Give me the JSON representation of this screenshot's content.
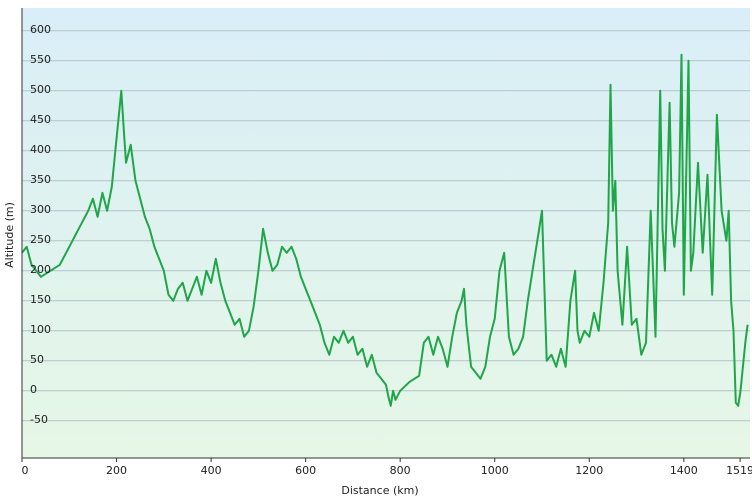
{
  "chart_data": {
    "type": "line",
    "x_label": "Distance  (km)",
    "y_label": "Altitude (m)",
    "x": [
      0,
      10,
      20,
      40,
      60,
      80,
      100,
      120,
      140,
      150,
      160,
      170,
      180,
      190,
      200,
      210,
      215,
      220,
      230,
      240,
      250,
      260,
      270,
      280,
      290,
      300,
      310,
      320,
      330,
      340,
      350,
      360,
      370,
      380,
      390,
      400,
      410,
      420,
      430,
      440,
      450,
      460,
      470,
      480,
      490,
      500,
      510,
      520,
      530,
      540,
      550,
      560,
      570,
      580,
      590,
      600,
      610,
      620,
      630,
      640,
      650,
      660,
      670,
      680,
      690,
      700,
      710,
      720,
      730,
      740,
      750,
      760,
      770,
      775,
      780,
      785,
      790,
      800,
      820,
      840,
      850,
      860,
      870,
      880,
      890,
      900,
      910,
      920,
      930,
      935,
      940,
      950,
      960,
      970,
      980,
      990,
      1000,
      1010,
      1020,
      1030,
      1040,
      1050,
      1060,
      1070,
      1080,
      1090,
      1100,
      1110,
      1120,
      1130,
      1140,
      1150,
      1160,
      1170,
      1175,
      1180,
      1190,
      1200,
      1210,
      1220,
      1230,
      1240,
      1245,
      1250,
      1255,
      1260,
      1270,
      1280,
      1290,
      1300,
      1310,
      1320,
      1330,
      1340,
      1350,
      1355,
      1360,
      1370,
      1375,
      1380,
      1390,
      1395,
      1400,
      1410,
      1415,
      1420,
      1430,
      1440,
      1450,
      1460,
      1470,
      1480,
      1490,
      1495,
      1500,
      1505,
      1510,
      1515,
      1520,
      1530,
      1535
    ],
    "series": [
      {
        "name": "Altitude",
        "color": "#1fa648",
        "values": [
          230,
          240,
          210,
          190,
          200,
          210,
          240,
          270,
          300,
          320,
          290,
          330,
          300,
          340,
          420,
          500,
          440,
          380,
          410,
          350,
          320,
          290,
          270,
          240,
          220,
          200,
          160,
          150,
          170,
          180,
          150,
          170,
          190,
          160,
          200,
          180,
          220,
          180,
          150,
          130,
          110,
          120,
          90,
          100,
          140,
          200,
          270,
          230,
          200,
          210,
          240,
          230,
          240,
          220,
          190,
          170,
          150,
          130,
          110,
          80,
          60,
          90,
          80,
          100,
          80,
          90,
          60,
          70,
          40,
          60,
          30,
          20,
          10,
          -10,
          -25,
          0,
          -15,
          0,
          15,
          25,
          80,
          90,
          60,
          90,
          70,
          40,
          90,
          130,
          150,
          170,
          110,
          40,
          30,
          20,
          40,
          90,
          120,
          200,
          230,
          90,
          60,
          70,
          90,
          150,
          200,
          250,
          300,
          50,
          60,
          40,
          70,
          40,
          150,
          200,
          100,
          80,
          100,
          90,
          130,
          100,
          180,
          280,
          510,
          300,
          350,
          200,
          110,
          240,
          110,
          120,
          60,
          80,
          300,
          90,
          500,
          270,
          200,
          480,
          280,
          240,
          330,
          560,
          160,
          550,
          200,
          230,
          380,
          230,
          360,
          160,
          460,
          300,
          250,
          300,
          150,
          100,
          -20,
          -25,
          0,
          80,
          110
        ]
      }
    ],
    "xlim": [
      0,
      1540
    ],
    "ylim": [
      -112,
      638
    ],
    "xticks": [
      0,
      200,
      400,
      600,
      800,
      1000,
      1200,
      1400,
      1519
    ],
    "yticks": [
      -50,
      0,
      50,
      100,
      150,
      200,
      250,
      300,
      350,
      400,
      450,
      500,
      550,
      600
    ],
    "grid": true
  }
}
